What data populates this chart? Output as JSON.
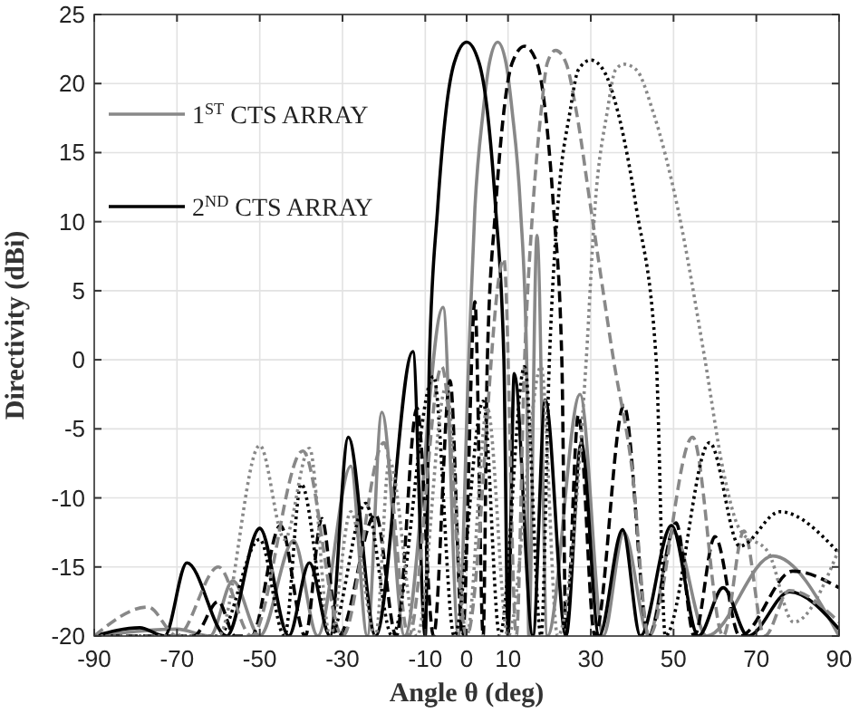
{
  "chart_data": {
    "type": "line",
    "xlabel": "Angle θ (deg)",
    "ylabel": "Directivity (dBi)",
    "xlim": [
      -90,
      90
    ],
    "xticks": [
      -90,
      -70,
      -50,
      -30,
      -10,
      0,
      10,
      30,
      50,
      70,
      90
    ],
    "ylim": [
      -20,
      25
    ],
    "yticks": [
      -20,
      -15,
      -10,
      -5,
      0,
      5,
      10,
      15,
      20,
      25
    ],
    "grid": true,
    "legend": "top left",
    "marker": "none",
    "series": [
      {
        "name": "1$^{ST}$ CTS ARRAY",
        "color": "#888888",
        "line_style": "solid",
        "x": [
          -90,
          -70,
          -62,
          -56.5,
          -50,
          -41.8,
          -36,
          -28,
          -24,
          -20.5,
          -15,
          -5.7,
          -2,
          0.5,
          2,
          4,
          5.5,
          7.5,
          9.5,
          11,
          13,
          14.5,
          15,
          17,
          19.5,
          27.4,
          33,
          38,
          44,
          50,
          58,
          74,
          90
        ],
        "values": [
          -20,
          -19.5,
          -20,
          -16,
          -20,
          -13.1,
          -20,
          -7.7,
          -20,
          -3.8,
          -20,
          3.8,
          -20,
          0,
          11,
          18,
          21.5,
          23,
          21.5,
          18,
          11,
          0,
          -20,
          9,
          -20,
          -2.5,
          -20,
          -12.5,
          -20,
          -12.5,
          -20,
          -14.2,
          -20
        ]
      },
      {
        "name": "2$^{ND}$ CTS ARRAY",
        "color": "#000000",
        "line_style": "solid",
        "x": [
          -90,
          -79,
          -73,
          -67.6,
          -58,
          -50,
          -43,
          -38,
          -33,
          -28.6,
          -22,
          -13,
          -10,
          -9,
          -7,
          -5,
          -3,
          0,
          3,
          5,
          7,
          9,
          10,
          11.5,
          16,
          19,
          24,
          27.7,
          32,
          37.7,
          42,
          49.5,
          56,
          62,
          68,
          78,
          90
        ],
        "values": [
          -20,
          -19.4,
          -20,
          -14.7,
          -20,
          -12.2,
          -20,
          -14.7,
          -20,
          -5.6,
          -20,
          0.6,
          -20,
          0,
          11,
          18,
          21.5,
          23,
          21.5,
          18,
          11,
          0,
          -20,
          -1,
          -20,
          -2.9,
          -20,
          -6,
          -20,
          -12.3,
          -20,
          -12,
          -20,
          -16.5,
          -20,
          -16.8,
          -19.5
        ]
      },
      {
        "color": "#000000",
        "line_style": "dashed",
        "x": [
          -90,
          -66,
          -60,
          -56,
          -52,
          -45,
          -39,
          -35,
          -31,
          -22,
          -17,
          -12,
          -8,
          -4,
          -1,
          2,
          4,
          5,
          7,
          9,
          11,
          14,
          17,
          19,
          21,
          23,
          24,
          27,
          31,
          38,
          44,
          50.6,
          55,
          60,
          66,
          78.8,
          90
        ],
        "values": [
          -20,
          -20,
          -17.5,
          -20,
          -20,
          -12,
          -20,
          -11.5,
          -20,
          -11.2,
          -20,
          -3.5,
          -20,
          -1.5,
          -20,
          4.2,
          -20,
          0,
          11,
          18,
          21.5,
          22.7,
          21.5,
          18,
          11,
          0,
          -20,
          -4,
          -20,
          -3.3,
          -20,
          -11.8,
          -20,
          -12.8,
          -20,
          -15.3,
          -16.5
        ]
      },
      {
        "color": "#888888",
        "line_style": "dashed",
        "x": [
          -90,
          -77,
          -70,
          -60,
          -52,
          -39.6,
          -30,
          -20,
          -14,
          -6,
          0,
          9,
          12,
          14,
          16,
          18,
          19.5,
          21.5,
          24,
          26.5,
          30,
          35.5,
          40,
          44,
          54.6,
          62,
          67,
          72,
          78,
          90
        ],
        "values": [
          -20,
          -17.9,
          -20,
          -15,
          -20,
          -6.6,
          -20,
          -6,
          -20,
          -0.5,
          -20,
          7.3,
          -20,
          0,
          11,
          18,
          21.5,
          22.4,
          21.5,
          18,
          11,
          0,
          -8,
          -20,
          -5.6,
          -20,
          -12.4,
          -20,
          -16.7,
          -19
        ]
      },
      {
        "color": "#000000",
        "line_style": "dotted",
        "x": [
          -90,
          -60,
          -50,
          -44,
          -40,
          -33,
          -24.4,
          -18,
          -8,
          -3,
          4,
          8,
          14,
          18,
          20,
          22,
          25,
          27,
          30,
          33,
          36.5,
          41,
          45.8,
          48,
          58.7,
          66,
          75.7,
          90
        ],
        "values": [
          -20,
          -20,
          -13,
          -20,
          -9,
          -20,
          -10.4,
          -20,
          -1.2,
          -20,
          -3,
          -20,
          -0.5,
          -20,
          0,
          11,
          18,
          21,
          21.7,
          21,
          18,
          11,
          0,
          -20,
          -6,
          -13.5,
          -11,
          -14
        ]
      },
      {
        "color": "#888888",
        "line_style": "dotted",
        "x": [
          -90,
          -60,
          -50,
          -44,
          -38,
          -33,
          -28,
          -22,
          -18.7,
          -12,
          -5,
          0,
          5,
          10,
          18,
          22,
          28.9,
          31,
          34,
          36,
          38,
          41,
          45,
          51,
          57.6,
          62,
          66,
          73,
          79,
          90
        ],
        "values": [
          -20,
          -20,
          -6.2,
          -13,
          -6.4,
          -20,
          -11,
          -20,
          -7.3,
          -20,
          -2,
          -20,
          -3.5,
          -20,
          -0.5,
          -20,
          0,
          11,
          18,
          21,
          21.4,
          21,
          18,
          11,
          0,
          -8,
          -12.3,
          -14,
          -19,
          -13.7
        ]
      }
    ]
  }
}
